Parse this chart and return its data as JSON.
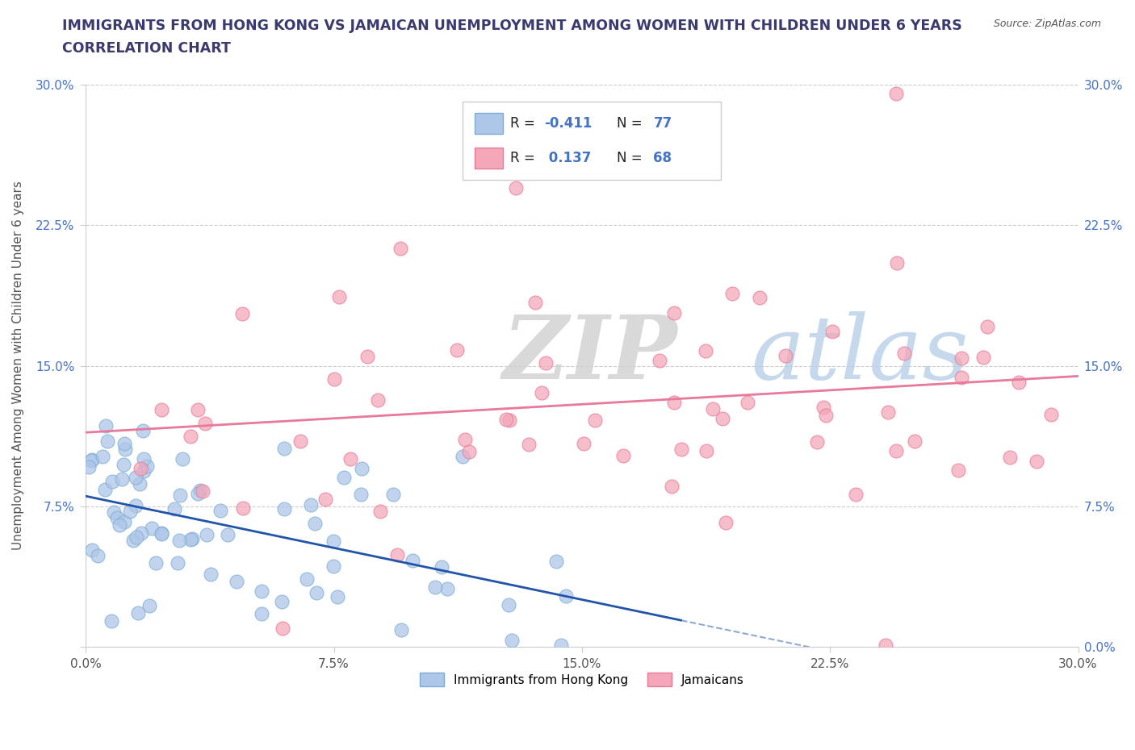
{
  "title_line1": "IMMIGRANTS FROM HONG KONG VS JAMAICAN UNEMPLOYMENT AMONG WOMEN WITH CHILDREN UNDER 6 YEARS",
  "title_line2": "CORRELATION CHART",
  "source_text": "Source: ZipAtlas.com",
  "ylabel": "Unemployment Among Women with Children Under 6 years",
  "xmin": 0.0,
  "xmax": 0.3,
  "ymin": 0.0,
  "ymax": 0.3,
  "title_color": "#3a3a6e",
  "hk_color": "#aec6e8",
  "hk_edge": "#7badd4",
  "hk_line_color": "#2255aa",
  "jam_color": "#f4a7b9",
  "jam_edge": "#e8799a",
  "jam_line_color": "#e8799a",
  "legend_hk_R": "-0.411",
  "legend_hk_N": "77",
  "legend_jam_R": "0.137",
  "legend_jam_N": "68"
}
